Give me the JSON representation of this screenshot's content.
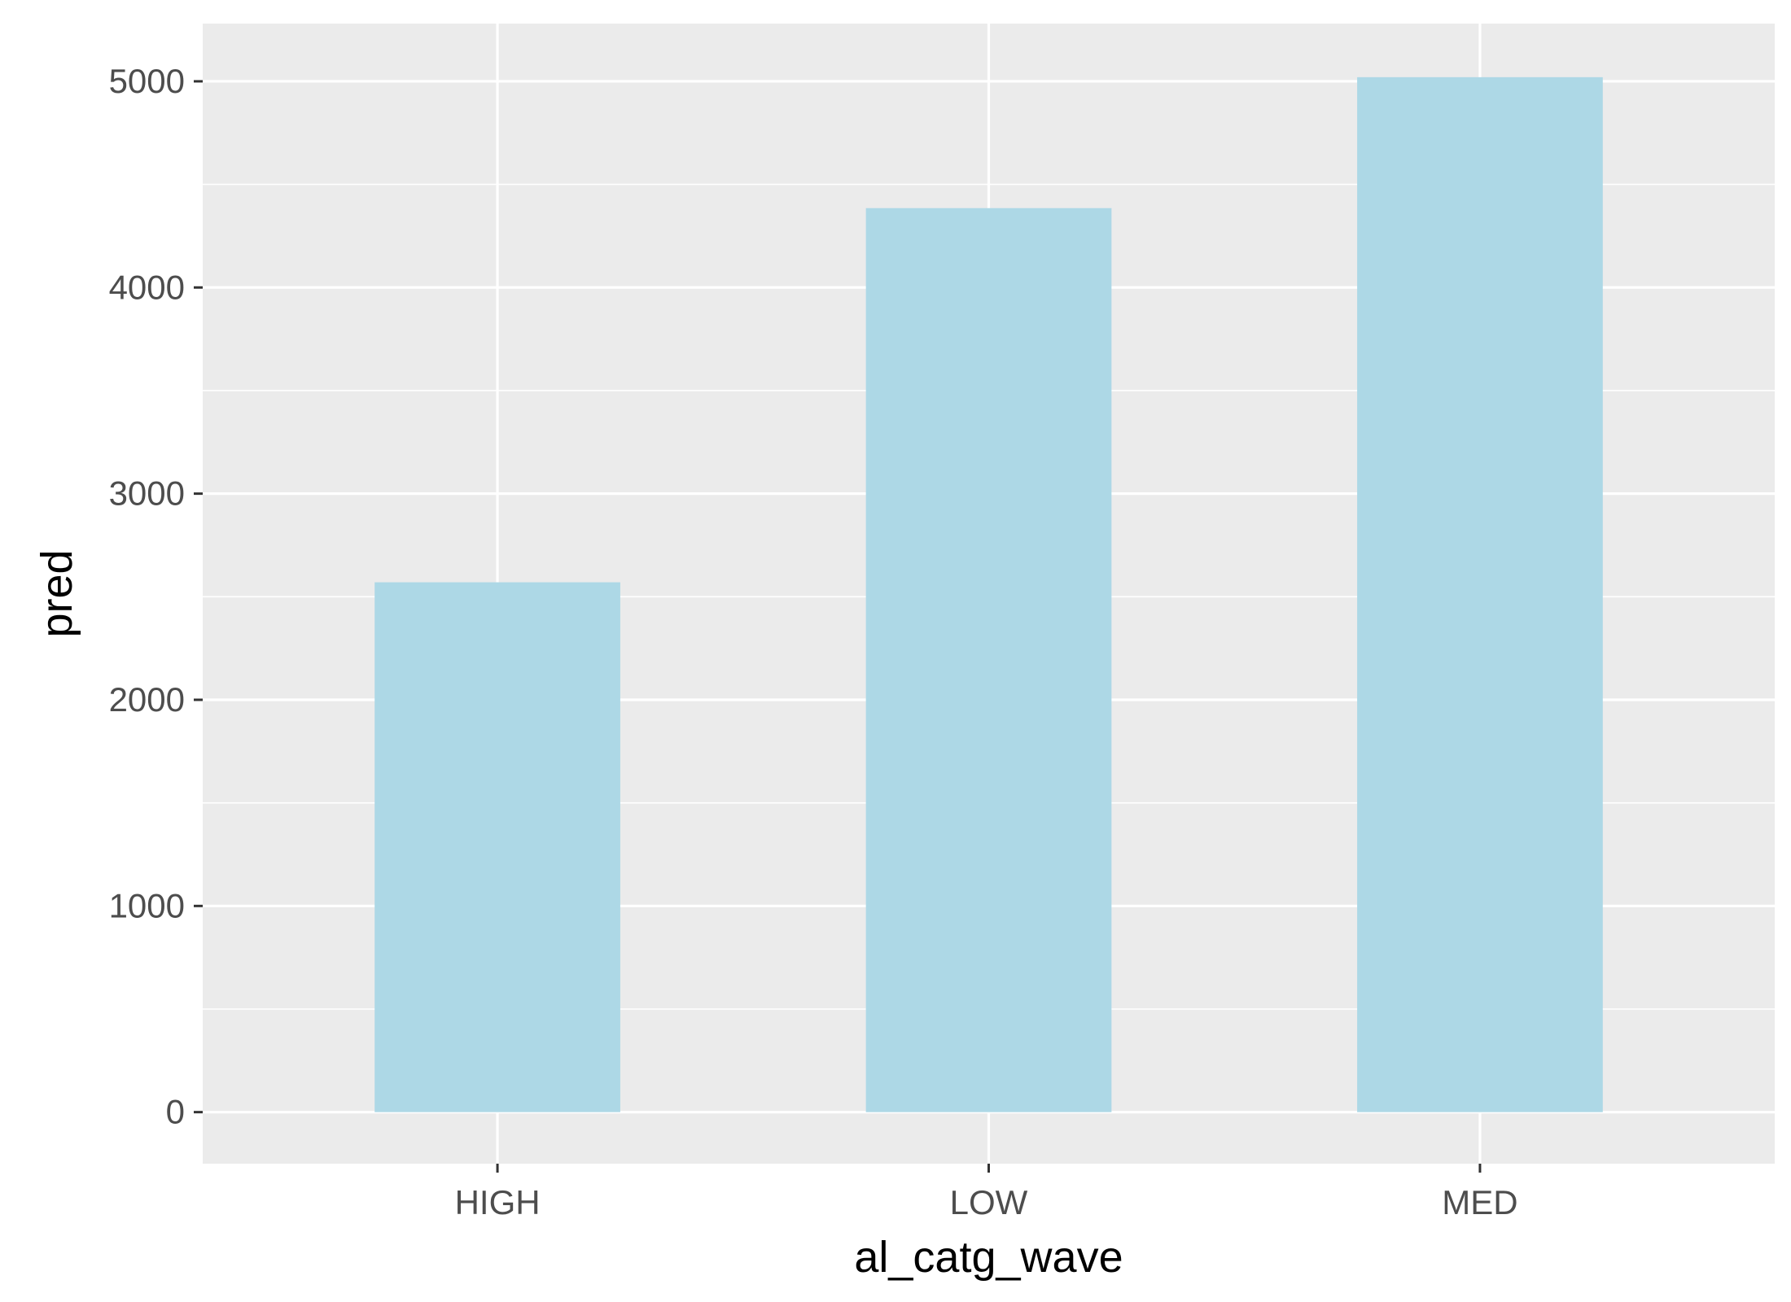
{
  "chart_data": {
    "type": "bar",
    "categories": [
      "HIGH",
      "LOW",
      "MED"
    ],
    "values": [
      2570,
      4385,
      5020
    ],
    "title": "",
    "xlabel": "al_catg_wave",
    "ylabel": "pred",
    "ylim": [
      -250,
      5280
    ],
    "yticks": [
      0,
      1000,
      2000,
      3000,
      4000,
      5000
    ],
    "ytick_labels": [
      "0",
      "1000",
      "2000",
      "3000",
      "4000",
      "5000"
    ],
    "grid": true,
    "legend": "none",
    "colors": {
      "bar": "#ADD8E6",
      "panel_background": "#EBEBEB",
      "grid": "#FFFFFF",
      "tick_label": "#4D4D4D",
      "axis_title": "#000000"
    }
  }
}
